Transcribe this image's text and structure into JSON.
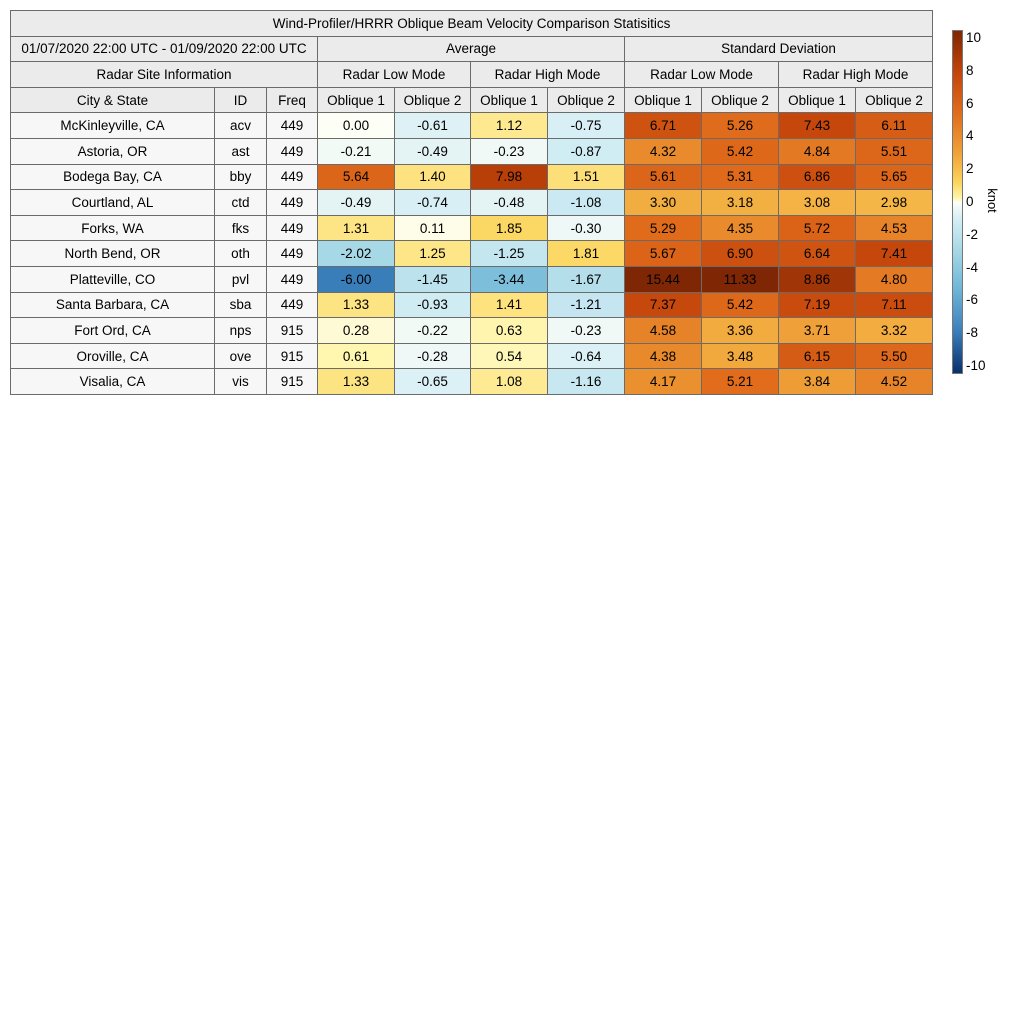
{
  "title": "Wind-Profiler/HRRR Oblique Beam Velocity Comparison Statisitics",
  "date_range": "01/07/2020 22:00 UTC - 01/09/2020 22:00 UTC",
  "group_headers": {
    "average": "Average",
    "std_dev": "Standard Deviation"
  },
  "site_info_header": "Radar Site Information",
  "mode_headers": [
    "Radar Low Mode",
    "Radar High Mode",
    "Radar Low Mode",
    "Radar High Mode"
  ],
  "column_headers": [
    "City & State",
    "ID",
    "Freq",
    "Oblique 1",
    "Oblique 2",
    "Oblique 1",
    "Oblique 2",
    "Oblique 1",
    "Oblique 2",
    "Oblique 1",
    "Oblique 2"
  ],
  "colorbar": {
    "label": "knot",
    "ticks": [
      "10",
      "8",
      "6",
      "4",
      "2",
      "0",
      "-2",
      "-4",
      "-6",
      "-8",
      "-10"
    ],
    "range": [
      -10,
      10
    ]
  },
  "chart_data": {
    "type": "heatmap",
    "title": "Wind-Profiler/HRRR Oblique Beam Velocity Comparison Statisitics",
    "unit": "knot",
    "color_range": [
      -10,
      10
    ],
    "rows": [
      {
        "city": "McKinleyville, CA",
        "id": "acv",
        "freq": "449",
        "values": [
          "0.00",
          "-0.61",
          "1.12",
          "-0.75",
          "6.71",
          "5.26",
          "7.43",
          "6.11"
        ]
      },
      {
        "city": "Astoria, OR",
        "id": "ast",
        "freq": "449",
        "values": [
          "-0.21",
          "-0.49",
          "-0.23",
          "-0.87",
          "4.32",
          "5.42",
          "4.84",
          "5.51"
        ]
      },
      {
        "city": "Bodega Bay, CA",
        "id": "bby",
        "freq": "449",
        "values": [
          "5.64",
          "1.40",
          "7.98",
          "1.51",
          "5.61",
          "5.31",
          "6.86",
          "5.65"
        ]
      },
      {
        "city": "Courtland, AL",
        "id": "ctd",
        "freq": "449",
        "values": [
          "-0.49",
          "-0.74",
          "-0.48",
          "-1.08",
          "3.30",
          "3.18",
          "3.08",
          "2.98"
        ]
      },
      {
        "city": "Forks, WA",
        "id": "fks",
        "freq": "449",
        "values": [
          "1.31",
          "0.11",
          "1.85",
          "-0.30",
          "5.29",
          "4.35",
          "5.72",
          "4.53"
        ]
      },
      {
        "city": "North Bend, OR",
        "id": "oth",
        "freq": "449",
        "values": [
          "-2.02",
          "1.25",
          "-1.25",
          "1.81",
          "5.67",
          "6.90",
          "6.64",
          "7.41"
        ]
      },
      {
        "city": "Platteville, CO",
        "id": "pvl",
        "freq": "449",
        "values": [
          "-6.00",
          "-1.45",
          "-3.44",
          "-1.67",
          "15.44",
          "11.33",
          "8.86",
          "4.80"
        ]
      },
      {
        "city": "Santa Barbara, CA",
        "id": "sba",
        "freq": "449",
        "values": [
          "1.33",
          "-0.93",
          "1.41",
          "-1.21",
          "7.37",
          "5.42",
          "7.19",
          "7.11"
        ]
      },
      {
        "city": "Fort Ord, CA",
        "id": "nps",
        "freq": "915",
        "values": [
          "0.28",
          "-0.22",
          "0.63",
          "-0.23",
          "4.58",
          "3.36",
          "3.71",
          "3.32"
        ]
      },
      {
        "city": "Oroville, CA",
        "id": "ove",
        "freq": "915",
        "values": [
          "0.61",
          "-0.28",
          "0.54",
          "-0.64",
          "4.38",
          "3.48",
          "6.15",
          "5.50"
        ]
      },
      {
        "city": "Visalia, CA",
        "id": "vis",
        "freq": "915",
        "values": [
          "1.33",
          "-0.65",
          "1.08",
          "-1.16",
          "4.17",
          "5.21",
          "3.84",
          "4.52"
        ]
      }
    ]
  }
}
